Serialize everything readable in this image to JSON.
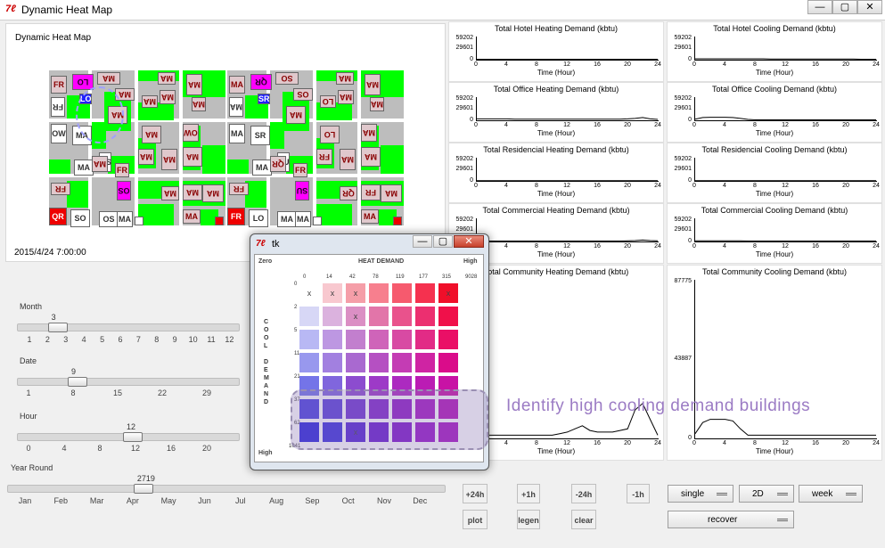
{
  "window": {
    "title": "Dynamic Heat Map",
    "icon": "tk-feather-icon",
    "min_label": "—",
    "max_label": "▢",
    "close_label": "✕"
  },
  "map": {
    "title": "Dynamic Heat Map",
    "datetime": "2015/4/24    7:00:00",
    "labels": [
      "FR",
      "LO",
      "MA",
      "MA",
      "MA",
      "MA",
      "FR",
      "LO",
      "MA",
      "MA",
      "MA",
      "MA",
      "OW",
      "MA",
      "MA",
      "OW",
      "MA",
      "MA",
      "OS",
      "FR",
      "MA",
      "MA",
      "MA",
      "OS",
      "FR",
      "MA",
      "MA",
      "MA",
      "QR",
      "SO",
      "OS",
      "MA",
      "MA",
      "MA",
      "QR",
      "SO",
      "OS",
      "MA",
      "MA",
      "MA",
      "SR",
      "LO",
      "MA",
      "MA",
      "MA",
      "MA",
      "SR",
      "LO",
      "MA",
      "MA",
      "MA",
      "SU",
      "FR",
      "QR",
      "FR",
      "MA",
      "SU",
      "FR",
      "QR",
      "FR",
      "MA"
    ]
  },
  "sliders": {
    "month": {
      "label": "Month",
      "value": "3",
      "ticks": [
        "1",
        "2",
        "3",
        "4",
        "5",
        "6",
        "7",
        "8",
        "9",
        "10",
        "11",
        "12"
      ],
      "fraction": 0.18
    },
    "date": {
      "label": "Date",
      "value": "9",
      "ticks": [
        "1",
        "8",
        "15",
        "22",
        "29"
      ],
      "fraction": 0.27
    },
    "hour": {
      "label": "Hour",
      "value": "12",
      "ticks": [
        "0",
        "4",
        "8",
        "12",
        "16",
        "20"
      ],
      "fraction": 0.52
    },
    "year": {
      "label": "Year Round",
      "value": "2719",
      "ticks": [
        "Jan",
        "Feb",
        "Mar",
        "Apr",
        "May",
        "Jun",
        "Jul",
        "Aug",
        "Sep",
        "Oct",
        "Nov",
        "Dec"
      ],
      "fraction": 0.31
    }
  },
  "charts": [
    {
      "title": "Total Hotel Heating Demand (kbtu)",
      "y_top": "59202",
      "y_mid": "29601",
      "xlabel": "Time (Hour)",
      "xticks": [
        "0",
        "4",
        "8",
        "12",
        "16",
        "20",
        "24"
      ],
      "values": [
        0.02,
        0.02,
        0.02,
        0.02,
        0.02,
        0.02,
        0.02,
        0.02,
        0.02,
        0.02,
        0.02,
        0.02,
        0.02,
        0.02,
        0.02,
        0.02,
        0.02,
        0.02,
        0.02,
        0.02,
        0.02,
        0.02,
        0.02,
        0.02,
        0.02
      ]
    },
    {
      "title": "Total Hotel Cooling Demand (kbtu)",
      "y_top": "59202",
      "y_mid": "29601",
      "xlabel": "Time (Hour)",
      "xticks": [
        "0",
        "4",
        "8",
        "12",
        "16",
        "20",
        "24"
      ],
      "values": [
        0.04,
        0.04,
        0.04,
        0.04,
        0.04,
        0.04,
        0.04,
        0.04,
        0.04,
        0.04,
        0.03,
        0.03,
        0.03,
        0.03,
        0.03,
        0.03,
        0.03,
        0.03,
        0.03,
        0.03,
        0.03,
        0.03,
        0.02,
        0.02,
        0.02
      ]
    },
    {
      "title": "Total Office Heating Demand (kbtu)",
      "y_top": "59202",
      "y_mid": "29601",
      "xlabel": "Time (Hour)",
      "xticks": [
        "0",
        "4",
        "8",
        "12",
        "16",
        "20",
        "24"
      ],
      "values": [
        0.06,
        0.06,
        0.06,
        0.06,
        0.06,
        0.05,
        0.05,
        0.05,
        0.05,
        0.05,
        0.05,
        0.05,
        0.05,
        0.05,
        0.05,
        0.05,
        0.05,
        0.05,
        0.05,
        0.05,
        0.06,
        0.08,
        0.12,
        0.06,
        0.04
      ]
    },
    {
      "title": "Total Office Cooling Demand (kbtu)",
      "y_top": "59202",
      "y_mid": "29601",
      "xlabel": "Time (Hour)",
      "xticks": [
        "0",
        "4",
        "8",
        "12",
        "16",
        "20",
        "24"
      ],
      "values": [
        0.05,
        0.12,
        0.13,
        0.13,
        0.13,
        0.12,
        0.08,
        0.04,
        0.02,
        0.02,
        0.02,
        0.02,
        0.02,
        0.02,
        0.02,
        0.02,
        0.02,
        0.02,
        0.02,
        0.02,
        0.02,
        0.02,
        0.02,
        0.02,
        0.02
      ]
    },
    {
      "title": "Total Residencial Heating Demand (kbtu)",
      "y_top": "59202",
      "y_mid": "29601",
      "xlabel": "Time (Hour)",
      "xticks": [
        "0",
        "4",
        "8",
        "12",
        "16",
        "20",
        "24"
      ],
      "values": [
        0.01,
        0.01,
        0.01,
        0.01,
        0.01,
        0.01,
        0.01,
        0.01,
        0.01,
        0.01,
        0.01,
        0.01,
        0.01,
        0.01,
        0.01,
        0.01,
        0.01,
        0.01,
        0.01,
        0.01,
        0.01,
        0.01,
        0.01,
        0.01,
        0.01
      ]
    },
    {
      "title": "Total Residencial Cooling Demand (kbtu)",
      "y_top": "59202",
      "y_mid": "29601",
      "xlabel": "Time (Hour)",
      "xticks": [
        "0",
        "4",
        "8",
        "12",
        "16",
        "20",
        "24"
      ],
      "values": [
        0.01,
        0.01,
        0.01,
        0.01,
        0.01,
        0.01,
        0.01,
        0.01,
        0.01,
        0.01,
        0.01,
        0.01,
        0.01,
        0.01,
        0.01,
        0.01,
        0.01,
        0.01,
        0.01,
        0.01,
        0.01,
        0.01,
        0.01,
        0.01,
        0.01
      ]
    },
    {
      "title": "Total Commercial Heating Demand (kbtu)",
      "y_top": "59202",
      "y_mid": "29601",
      "xlabel": "Time (Hour)",
      "xticks": [
        "0",
        "4",
        "8",
        "12",
        "16",
        "20",
        "24"
      ],
      "values": [
        0.02,
        0.02,
        0.02,
        0.02,
        0.02,
        0.02,
        0.02,
        0.02,
        0.02,
        0.02,
        0.02,
        0.02,
        0.02,
        0.02,
        0.02,
        0.02,
        0.02,
        0.02,
        0.02,
        0.02,
        0.03,
        0.04,
        0.06,
        0.04,
        0.03
      ]
    },
    {
      "title": "Total Commercial Cooling Demand (kbtu)",
      "y_top": "59202",
      "y_mid": "29601",
      "xlabel": "Time (Hour)",
      "xticks": [
        "0",
        "4",
        "8",
        "12",
        "16",
        "20",
        "24"
      ],
      "values": [
        0.03,
        0.03,
        0.03,
        0.03,
        0.03,
        0.03,
        0.03,
        0.02,
        0.02,
        0.02,
        0.02,
        0.02,
        0.02,
        0.02,
        0.02,
        0.02,
        0.02,
        0.02,
        0.02,
        0.02,
        0.02,
        0.02,
        0.02,
        0.02,
        0.02
      ]
    },
    {
      "title": "Total Community Heating Demand (kbtu)",
      "y_top": "",
      "y_mid": "",
      "xlabel": "Time (Hour)",
      "xticks": [
        "0",
        "4",
        "8",
        "12",
        "16",
        "20",
        "24"
      ],
      "values": [
        0.02,
        0.02,
        0.02,
        0.02,
        0.02,
        0.02,
        0.02,
        0.02,
        0.02,
        0.02,
        0.02,
        0.03,
        0.04,
        0.06,
        0.08,
        0.05,
        0.04,
        0.04,
        0.04,
        0.05,
        0.06,
        0.18,
        0.22,
        0.12,
        0.02
      ]
    },
    {
      "title": "Total Community Cooling Demand (kbtu)",
      "y_top": "87775",
      "y_mid": "43887",
      "xlabel": "Time (Hour)",
      "xticks": [
        "0",
        "4",
        "8",
        "12",
        "16",
        "20",
        "24"
      ],
      "values": [
        0.03,
        0.1,
        0.12,
        0.12,
        0.12,
        0.11,
        0.06,
        0.02,
        0.02,
        0.02,
        0.02,
        0.02,
        0.02,
        0.02,
        0.02,
        0.02,
        0.02,
        0.02,
        0.02,
        0.02,
        0.02,
        0.02,
        0.02,
        0.02,
        0.02
      ]
    }
  ],
  "buttons": {
    "plus24": "+24h",
    "plus1": "+1h",
    "minus24": "-24h",
    "minus1": "-1h",
    "plot": "plot",
    "legend": "legen",
    "clear": "clear",
    "single": "single",
    "mode2d": "2D",
    "week": "week",
    "recover": "recover"
  },
  "popup": {
    "title": "tk",
    "zero": "Zero",
    "heat_demand": "HEAT DEMAND",
    "high_top": "High",
    "high_bottom": "High",
    "cool_demand_letters": [
      "C",
      "O",
      "O",
      "L",
      " ",
      "D",
      "E",
      "M",
      "A",
      "N",
      "D"
    ],
    "heat_ticks": [
      "0",
      "14",
      "42",
      "78",
      "119",
      "177",
      "315",
      "9028"
    ],
    "cool_ticks": [
      "0",
      "2",
      "5",
      "11",
      "21",
      "37",
      "62",
      "1041"
    ],
    "marks": [
      [
        "x",
        "x",
        "x",
        "",
        "",
        "",
        "x"
      ],
      [
        "",
        "",
        "x",
        "",
        "",
        "",
        ""
      ],
      [
        "",
        "",
        "",
        "",
        "",
        "",
        ""
      ],
      [
        "",
        "",
        "",
        "",
        "",
        "",
        ""
      ],
      [
        "",
        "",
        "",
        "",
        "",
        "",
        ""
      ],
      [
        "",
        "",
        "",
        "",
        "",
        "",
        ""
      ],
      [
        "",
        "",
        "x",
        "",
        "",
        "",
        ""
      ]
    ],
    "colors": [
      [
        "#ffffff",
        "#f8c8cf",
        "#f59ea8",
        "#f77f8e",
        "#f65a6e",
        "#f5314f",
        "#f00f2a"
      ],
      [
        "#d7d7f6",
        "#dbb2de",
        "#db8fc4",
        "#e275a9",
        "#e9528c",
        "#ec2f70",
        "#f0104a"
      ],
      [
        "#b8b8f4",
        "#bd97e2",
        "#c27fce",
        "#cf64b9",
        "#d84aa3",
        "#e22b86",
        "#ea0f66"
      ],
      [
        "#9898ee",
        "#a280e0",
        "#a969d0",
        "#b550c2",
        "#c43cb4",
        "#cf24a3",
        "#da0c8a"
      ],
      [
        "#7474e8",
        "#8066dd",
        "#8c4ccf",
        "#9d3ac7",
        "#ac2ac0",
        "#bb1cb4",
        "#c812a5"
      ],
      [
        "#4a3fe0",
        "#5a3edb",
        "#6f33d3",
        "#8024cc",
        "#901ac6",
        "#a516c3",
        "#b212b8"
      ],
      [
        "#2a22dd",
        "#3b2edd",
        "#5323d5",
        "#681ad0",
        "#7e14cb",
        "#9714c9",
        "#a613c2"
      ]
    ]
  },
  "annotation": "Identify  high  cooling  demand  buildings"
}
